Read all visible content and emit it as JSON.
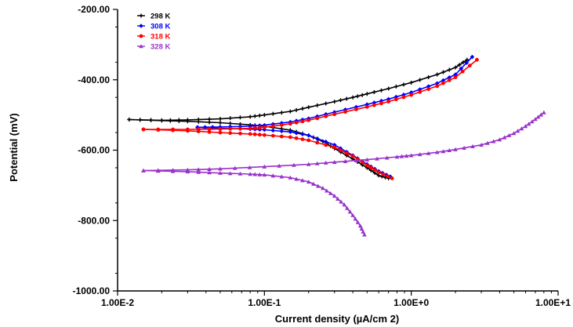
{
  "chart_data": {
    "type": "line",
    "xlabel": "Current density (µA/cm 2)",
    "ylabel": "Potential (mV)",
    "x_scale": "log",
    "xlim": [
      0.01,
      10
    ],
    "ylim": [
      -1000,
      -200
    ],
    "x_ticks": [
      {
        "value": 0.01,
        "label": "1.00E-2"
      },
      {
        "value": 0.1,
        "label": "1.00E-1"
      },
      {
        "value": 1,
        "label": "1.00E+0"
      },
      {
        "value": 10,
        "label": "1.00E+1"
      }
    ],
    "y_ticks": [
      {
        "value": -200,
        "label": "-200.00"
      },
      {
        "value": -400,
        "label": "-400.00"
      },
      {
        "value": -600,
        "label": "-600.00"
      },
      {
        "value": -800,
        "label": "-800.00"
      },
      {
        "value": -1000,
        "label": "-1000.00"
      }
    ],
    "grid": false,
    "legend_position": "top-left",
    "series": [
      {
        "name": "298 K",
        "color": "#000000",
        "marker": "plus",
        "branches": [
          [
            [
              0.012,
              -513
            ],
            [
              0.02,
              -515
            ],
            [
              0.03,
              -514
            ],
            [
              0.05,
              -511
            ],
            [
              0.08,
              -505
            ],
            [
              0.1,
              -500
            ],
            [
              0.15,
              -490
            ],
            [
              0.2,
              -478
            ],
            [
              0.3,
              -462
            ],
            [
              0.4,
              -450
            ],
            [
              0.5,
              -440
            ],
            [
              0.7,
              -425
            ],
            [
              1.0,
              -408
            ],
            [
              1.5,
              -385
            ],
            [
              2.0,
              -365
            ],
            [
              2.4,
              -343
            ]
          ],
          [
            [
              0.012,
              -513
            ],
            [
              0.02,
              -516
            ],
            [
              0.03,
              -518
            ],
            [
              0.05,
              -522
            ],
            [
              0.08,
              -528
            ],
            [
              0.1,
              -532
            ],
            [
              0.15,
              -543
            ],
            [
              0.2,
              -558
            ],
            [
              0.25,
              -575
            ],
            [
              0.3,
              -595
            ],
            [
              0.4,
              -625
            ],
            [
              0.5,
              -650
            ],
            [
              0.6,
              -672
            ],
            [
              0.7,
              -680
            ]
          ]
        ]
      },
      {
        "name": "308 K",
        "color": "#0000ff",
        "marker": "diamond",
        "branches": [
          [
            [
              0.035,
              -535
            ],
            [
              0.05,
              -534
            ],
            [
              0.08,
              -532
            ],
            [
              0.1,
              -529
            ],
            [
              0.15,
              -520
            ],
            [
              0.2,
              -510
            ],
            [
              0.3,
              -492
            ],
            [
              0.5,
              -470
            ],
            [
              0.7,
              -455
            ],
            [
              1.0,
              -436
            ],
            [
              1.5,
              -410
            ],
            [
              2.0,
              -385
            ],
            [
              2.6,
              -335
            ]
          ],
          [
            [
              0.035,
              -535
            ],
            [
              0.05,
              -538
            ],
            [
              0.08,
              -540
            ],
            [
              0.1,
              -542
            ],
            [
              0.15,
              -548
            ],
            [
              0.2,
              -558
            ],
            [
              0.3,
              -585
            ],
            [
              0.4,
              -615
            ],
            [
              0.5,
              -640
            ],
            [
              0.6,
              -660
            ],
            [
              0.72,
              -675
            ]
          ]
        ]
      },
      {
        "name": "318 K",
        "color": "#ff0000",
        "marker": "circle",
        "branches": [
          [
            [
              0.015,
              -541
            ],
            [
              0.03,
              -541
            ],
            [
              0.05,
              -540
            ],
            [
              0.08,
              -538
            ],
            [
              0.1,
              -535
            ],
            [
              0.15,
              -525
            ],
            [
              0.2,
              -515
            ],
            [
              0.3,
              -498
            ],
            [
              0.5,
              -477
            ],
            [
              0.7,
              -462
            ],
            [
              1.0,
              -443
            ],
            [
              1.5,
              -418
            ],
            [
              2.0,
              -393
            ],
            [
              2.8,
              -343
            ]
          ],
          [
            [
              0.015,
              -541
            ],
            [
              0.03,
              -545
            ],
            [
              0.05,
              -550
            ],
            [
              0.08,
              -554
            ],
            [
              0.1,
              -557
            ],
            [
              0.15,
              -563
            ],
            [
              0.2,
              -572
            ],
            [
              0.3,
              -592
            ],
            [
              0.4,
              -617
            ],
            [
              0.5,
              -643
            ],
            [
              0.6,
              -663
            ],
            [
              0.74,
              -680
            ]
          ]
        ]
      },
      {
        "name": "328 K",
        "color": "#9932cc",
        "marker": "triangle",
        "branches": [
          [
            [
              0.015,
              -658
            ],
            [
              0.03,
              -656
            ],
            [
              0.05,
              -653
            ],
            [
              0.1,
              -647
            ],
            [
              0.2,
              -640
            ],
            [
              0.3,
              -634
            ],
            [
              0.5,
              -627
            ],
            [
              0.8,
              -619
            ],
            [
              1.0,
              -615
            ],
            [
              1.5,
              -606
            ],
            [
              2.0,
              -598
            ],
            [
              3.0,
              -585
            ],
            [
              4.0,
              -570
            ],
            [
              5.0,
              -552
            ],
            [
              6.0,
              -532
            ],
            [
              7.0,
              -512
            ],
            [
              8.0,
              -493
            ]
          ],
          [
            [
              0.015,
              -658
            ],
            [
              0.03,
              -661
            ],
            [
              0.05,
              -665
            ],
            [
              0.08,
              -668
            ],
            [
              0.1,
              -670
            ],
            [
              0.15,
              -678
            ],
            [
              0.2,
              -690
            ],
            [
              0.25,
              -708
            ],
            [
              0.3,
              -730
            ],
            [
              0.35,
              -755
            ],
            [
              0.4,
              -785
            ],
            [
              0.45,
              -815
            ],
            [
              0.48,
              -840
            ]
          ]
        ]
      }
    ]
  }
}
